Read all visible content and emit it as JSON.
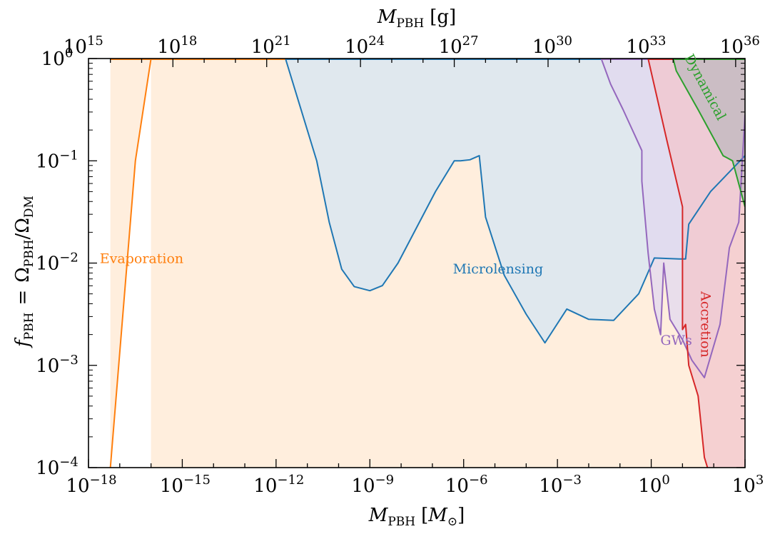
{
  "chart_data": {
    "type": "area",
    "xscale": "log",
    "yscale": "log",
    "xlim": [
      -18,
      3
    ],
    "ylim": [
      -4,
      0
    ],
    "xlabel": {
      "main": "M",
      "sub": "PBH",
      "unit_open": "[",
      "unit_main": "M",
      "unit_sub": "⊙",
      "unit_close": "]"
    },
    "ylabel": {
      "main": "f",
      "sub": "PBH",
      "eq": "=",
      "num": "Ω",
      "num_sub": "PBH",
      "slash": "/",
      "den": "Ω",
      "den_sub": "DM"
    },
    "top_xlabel": {
      "main": "M",
      "sub": "PBH",
      "unit": "[g]"
    },
    "x_ticks": [
      {
        "exp": -18,
        "base": "10",
        "sup": "−18"
      },
      {
        "exp": -15,
        "base": "10",
        "sup": "−15"
      },
      {
        "exp": -12,
        "base": "10",
        "sup": "−12"
      },
      {
        "exp": -9,
        "base": "10",
        "sup": "−9"
      },
      {
        "exp": -6,
        "base": "10",
        "sup": "−6"
      },
      {
        "exp": -3,
        "base": "10",
        "sup": "−3"
      },
      {
        "exp": 0,
        "base": "10",
        "sup": "0"
      },
      {
        "exp": 3,
        "base": "10",
        "sup": "3"
      }
    ],
    "y_ticks": [
      {
        "exp": 0,
        "base": "10",
        "sup": "0"
      },
      {
        "exp": -1,
        "base": "10",
        "sup": "−1"
      },
      {
        "exp": -2,
        "base": "10",
        "sup": "−2"
      },
      {
        "exp": -3,
        "base": "10",
        "sup": "−3"
      },
      {
        "exp": -4,
        "base": "10",
        "sup": "−4"
      }
    ],
    "top_ticks": [
      {
        "exp": 15,
        "base": "10",
        "sup": "15"
      },
      {
        "exp": 18,
        "base": "10",
        "sup": "18"
      },
      {
        "exp": 21,
        "base": "10",
        "sup": "21"
      },
      {
        "exp": 24,
        "base": "10",
        "sup": "24"
      },
      {
        "exp": 27,
        "base": "10",
        "sup": "27"
      },
      {
        "exp": 30,
        "base": "10",
        "sup": "30"
      },
      {
        "exp": 33,
        "base": "10",
        "sup": "33"
      },
      {
        "exp": 36,
        "base": "10",
        "sup": "36"
      }
    ],
    "gram_per_solar_mass_log10": 33.3,
    "series": [
      {
        "name": "Evaporation",
        "color": "#ff7f0e",
        "fill": "#ffe8d2",
        "label_at": [
          -16.3,
          -2.0
        ],
        "label_rotation": 0,
        "points": [
          [
            -17.3,
            -4.0
          ],
          [
            -16.5,
            -1.0
          ],
          [
            -16.0,
            0.0
          ]
        ]
      },
      {
        "name": "Microlensing",
        "color": "#1f77b4",
        "fill": "#d6e6f3",
        "label_at": [
          -4.9,
          -2.1
        ],
        "label_rotation": 0,
        "points": [
          [
            -11.7,
            0.0
          ],
          [
            -11.3,
            -0.4
          ],
          [
            -10.7,
            -1.0
          ],
          [
            -10.3,
            -1.6
          ],
          [
            -9.9,
            -2.06
          ],
          [
            -9.5,
            -2.23
          ],
          [
            -9.0,
            -2.27
          ],
          [
            -8.6,
            -2.22
          ],
          [
            -8.1,
            -2.0
          ],
          [
            -7.5,
            -1.65
          ],
          [
            -6.9,
            -1.3
          ],
          [
            -6.3,
            -1.0
          ],
          [
            -6.1,
            -1.0
          ],
          [
            -5.8,
            -0.99
          ],
          [
            -5.5,
            -0.95
          ],
          [
            -5.3,
            -1.55
          ],
          [
            -4.7,
            -2.12
          ],
          [
            -4.0,
            -2.5
          ],
          [
            -3.4,
            -2.78
          ],
          [
            -2.7,
            -2.45
          ],
          [
            -2.0,
            -2.55
          ],
          [
            -1.2,
            -2.56
          ],
          [
            -0.4,
            -2.3
          ],
          [
            0.1,
            -1.95
          ],
          [
            0.9,
            -1.96
          ],
          [
            1.1,
            -1.96
          ],
          [
            1.2,
            -1.62
          ],
          [
            1.9,
            -1.3
          ],
          [
            3.0,
            -0.95
          ]
        ]
      },
      {
        "name": "GWs",
        "color": "#9467bd",
        "fill": "#e2d8ef",
        "label_at": [
          0.8,
          -2.8
        ],
        "label_rotation": 0,
        "points": [
          [
            -1.6,
            0.0
          ],
          [
            -1.3,
            -0.25
          ],
          [
            -0.9,
            -0.5
          ],
          [
            -0.3,
            -0.9
          ],
          [
            -0.3,
            -1.2
          ],
          [
            -0.1,
            -1.9
          ],
          [
            0.1,
            -2.45
          ],
          [
            0.3,
            -2.7
          ],
          [
            0.4,
            -2.0
          ],
          [
            0.6,
            -2.55
          ],
          [
            1.0,
            -2.75
          ],
          [
            1.3,
            -2.95
          ],
          [
            1.7,
            -3.12
          ],
          [
            2.2,
            -2.6
          ],
          [
            2.5,
            -1.85
          ],
          [
            2.8,
            -1.6
          ],
          [
            3.0,
            -0.55
          ]
        ]
      },
      {
        "name": "Accretion",
        "color": "#d62728",
        "fill": "#f1c6cc",
        "label_at": [
          1.6,
          -2.6
        ],
        "label_rotation": 90,
        "points": [
          [
            -0.1,
            0.0
          ],
          [
            0.5,
            -0.8
          ],
          [
            1.0,
            -1.45
          ],
          [
            1.0,
            -2.65
          ],
          [
            1.1,
            -2.6
          ],
          [
            1.2,
            -3.0
          ],
          [
            1.5,
            -3.3
          ],
          [
            1.6,
            -3.6
          ],
          [
            1.7,
            -3.9
          ],
          [
            1.8,
            -4.0
          ]
        ]
      },
      {
        "name": "Dynamical",
        "color": "#2ca02c",
        "fill": "#bfb8bd",
        "label_at": [
          1.6,
          -0.3
        ],
        "label_rotation": 62,
        "points": [
          [
            0.7,
            0.0
          ],
          [
            0.8,
            -0.12
          ],
          [
            1.5,
            -0.5
          ],
          [
            2.3,
            -0.95
          ],
          [
            2.6,
            -1.0
          ],
          [
            3.0,
            -1.45
          ]
        ]
      }
    ],
    "excluded_band": {
      "color": "#c0c0c0",
      "ymin": 0.0,
      "ymax": 0.11
    }
  }
}
